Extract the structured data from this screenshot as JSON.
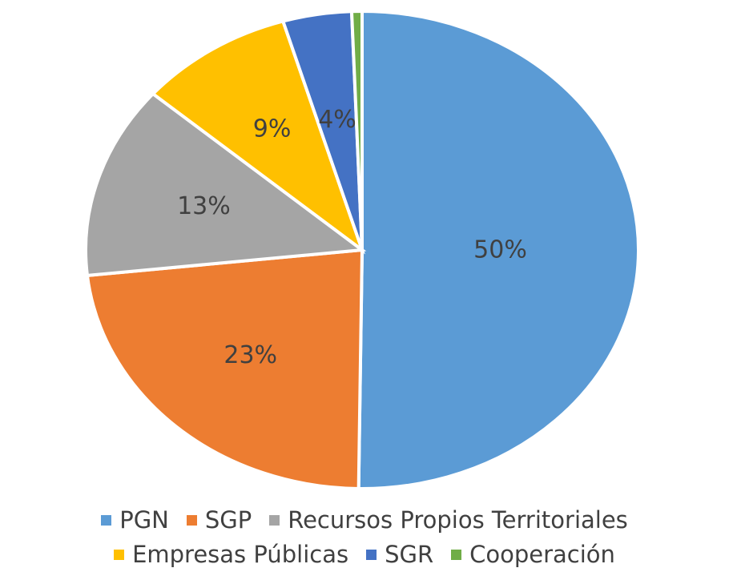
{
  "chart_data": {
    "type": "pie",
    "categories": [
      "PGN",
      "SGP",
      "Recursos Propios Territoriales",
      "Empresas Públicas",
      "SGR",
      "Cooperación"
    ],
    "values": [
      50,
      23,
      13,
      9,
      4,
      0.6
    ],
    "value_labels": [
      "50%",
      "23%",
      "13%",
      "9%",
      "4%",
      null
    ],
    "colors": [
      "#5b9bd5",
      "#ed7d31",
      "#a5a5a5",
      "#ffc000",
      "#4472c4",
      "#70ad47"
    ]
  }
}
